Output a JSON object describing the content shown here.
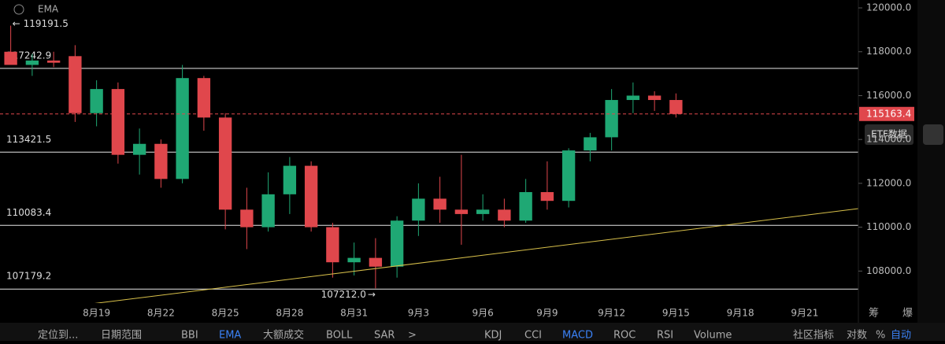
{
  "chart_data": {
    "type": "candlestick",
    "indicator": "EMA",
    "categories": [
      null,
      null,
      null,
      null,
      "8月19",
      null,
      null,
      "8月22",
      null,
      null,
      "8月25",
      null,
      null,
      "8月28",
      null,
      null,
      "8月31",
      null,
      null,
      "9月3",
      null,
      null,
      "9月6",
      null,
      null,
      "9月9",
      null,
      null,
      "9月12",
      null,
      null,
      "9月15",
      null,
      null,
      "9月18",
      null,
      null,
      "9月21",
      null,
      null
    ],
    "open": [
      118000,
      117400,
      117600,
      117800,
      115200,
      116300,
      113300,
      113800,
      112200,
      116800,
      115000,
      110800,
      110000,
      111500,
      112800,
      110000,
      108400,
      108600,
      108200,
      110300,
      111300,
      110800,
      110600,
      110800,
      110300,
      111600,
      111200,
      113500,
      114100,
      115800,
      116000,
      115800,
      null,
      null,
      null,
      null,
      null,
      null,
      null,
      null
    ],
    "high": [
      119191.5,
      117900,
      118000,
      118300,
      116700,
      116600,
      114500,
      114000,
      117400,
      116900,
      115200,
      111800,
      112500,
      113200,
      113000,
      110200,
      109300,
      109500,
      110500,
      112000,
      112300,
      113300,
      111500,
      111300,
      112200,
      113000,
      113600,
      114300,
      116300,
      116600,
      116200,
      116100,
      null,
      null,
      null,
      null,
      null,
      null,
      null,
      null
    ],
    "low": [
      117500,
      116900,
      117300,
      114800,
      114600,
      112900,
      112400,
      111800,
      112000,
      114400,
      109900,
      109000,
      109800,
      110600,
      109800,
      107700,
      107800,
      107212,
      107700,
      109600,
      110200,
      109200,
      110300,
      110000,
      110200,
      110800,
      110900,
      113000,
      113500,
      115200,
      115300,
      115000,
      null,
      null,
      null,
      null,
      null,
      null,
      null,
      null
    ],
    "low_value_labels": [
      null,
      null,
      null,
      null,
      null,
      null,
      null,
      null,
      null,
      null,
      null,
      null,
      null,
      null,
      null,
      null,
      null,
      "107212.0",
      null,
      null,
      null,
      null,
      null,
      null,
      null,
      null,
      null,
      null,
      null,
      null,
      null,
      null,
      null,
      null,
      null,
      null,
      null,
      null,
      null,
      null
    ],
    "close": [
      117400,
      117600,
      117500,
      115200,
      116300,
      113300,
      113800,
      112200,
      116800,
      115000,
      110800,
      110000,
      111500,
      112800,
      110000,
      108400,
      108600,
      108200,
      110300,
      111300,
      110800,
      110600,
      110800,
      110300,
      111600,
      111200,
      113500,
      114100,
      115800,
      116000,
      115800,
      115163.4,
      null,
      null,
      null,
      null,
      null,
      null,
      null,
      null
    ],
    "up_color": "#1fa874",
    "down_color": "#e0474c",
    "levels": [
      117242.9,
      113421.5,
      110083.4,
      107179.2
    ],
    "ylim": [
      106540,
      120360
    ],
    "yticks": [
      {
        "value": 108000,
        "label": "108000.0"
      },
      {
        "value": 110000,
        "label": "110000.0"
      },
      {
        "value": 112000,
        "label": "112000.0"
      },
      {
        "value": 114000,
        "label": "114000.0"
      },
      {
        "value": 116000,
        "label": "116000.0"
      },
      {
        "value": 118000,
        "label": "118000.0"
      },
      {
        "value": 120000,
        "label": "120000.0"
      }
    ]
  },
  "ui": {
    "tooltip": "ETF数据",
    "axis_buttons": [
      "筹",
      "爆"
    ],
    "toolbar": [
      "定位到...",
      "日期范围",
      "BBI",
      "EMA",
      "大额成交",
      "BOLL",
      "SAR",
      ">",
      "KDJ",
      "CCI",
      "MACD",
      "ROC",
      "RSI",
      "Volume",
      "社区指标",
      "对数",
      "%",
      "自动"
    ]
  }
}
